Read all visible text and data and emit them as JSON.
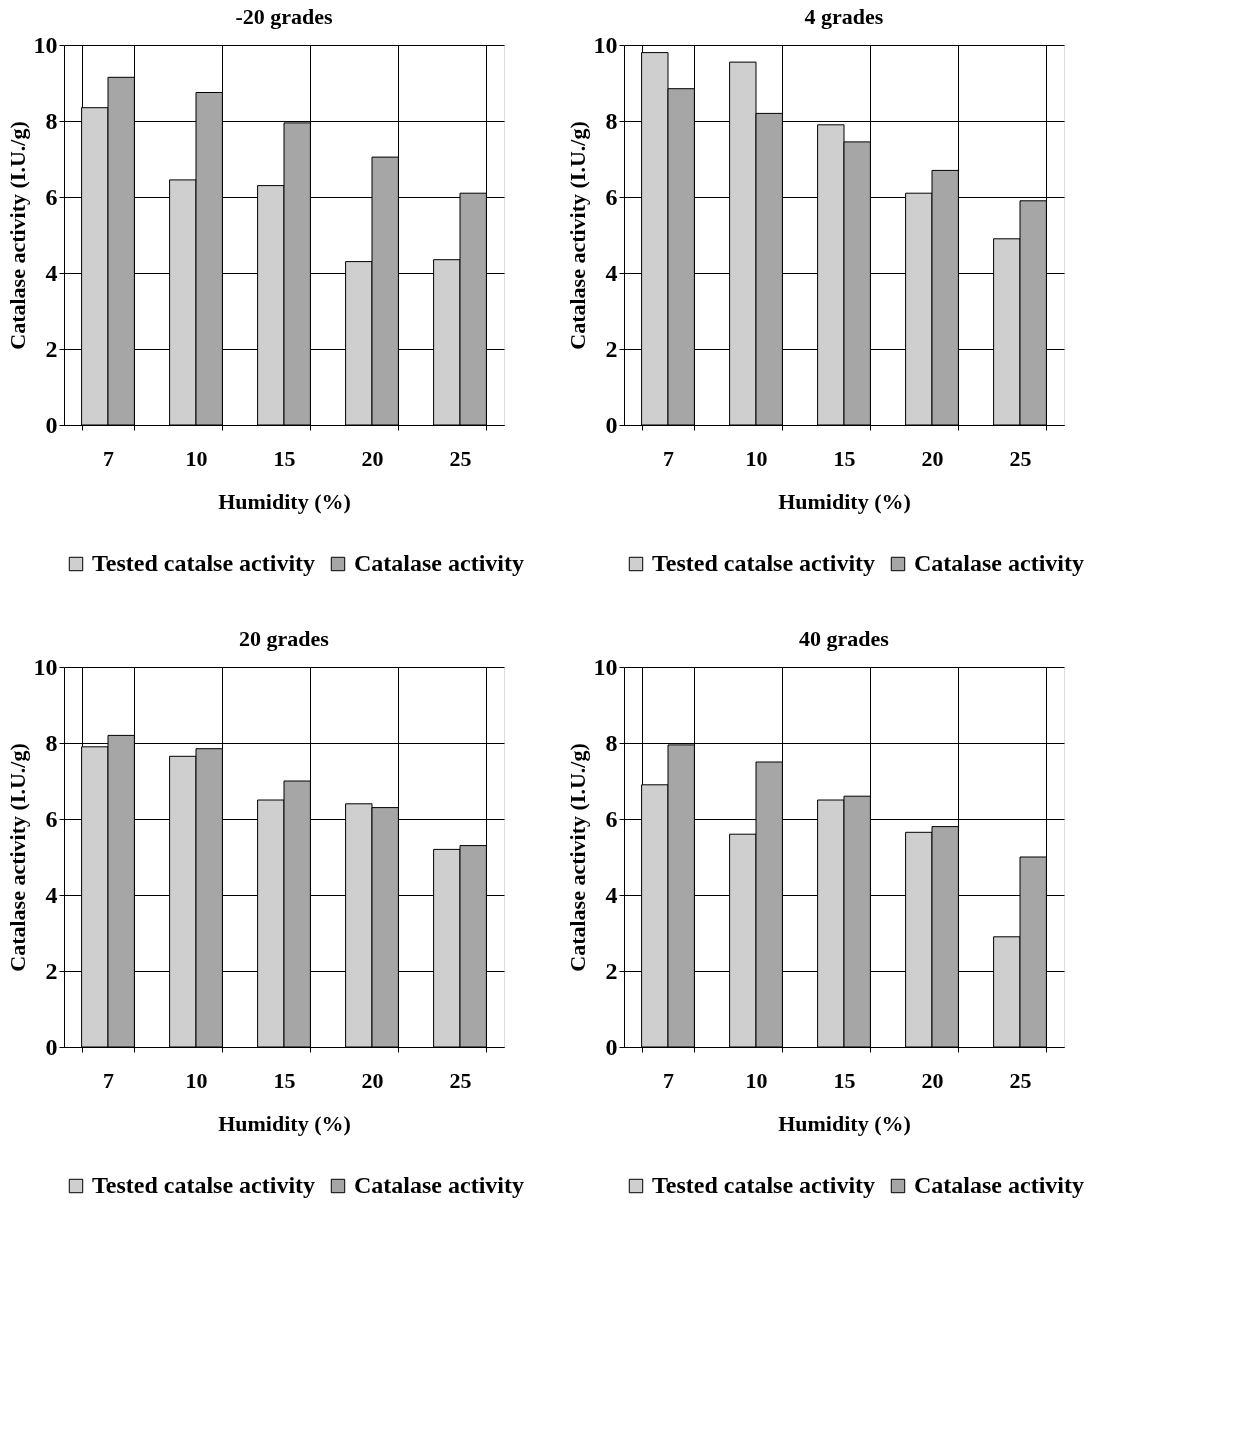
{
  "chart_data": [
    {
      "type": "bar",
      "title": "-20 grades",
      "xlabel": "Humidity (%)",
      "ylabel": "Catalase activity (I.U./g)",
      "categories": [
        "7",
        "10",
        "15",
        "20",
        "25"
      ],
      "ylim": [
        0,
        10
      ],
      "yticks": [
        0,
        2,
        4,
        6,
        8,
        10
      ],
      "grid": true,
      "legend": "bottom",
      "series": [
        {
          "name": "Tested catalse activity",
          "color": "#cfcfcf",
          "values": [
            8.35,
            6.45,
            6.3,
            4.3,
            4.35
          ]
        },
        {
          "name": "Catalase activity",
          "color": "#a6a6a6",
          "values": [
            9.15,
            8.75,
            7.95,
            7.05,
            6.1
          ]
        }
      ]
    },
    {
      "type": "bar",
      "title": "4 grades",
      "xlabel": "Humidity (%)",
      "ylabel": "Catalase activity (I.U./g)",
      "categories": [
        "7",
        "10",
        "15",
        "20",
        "25"
      ],
      "ylim": [
        0,
        10
      ],
      "yticks": [
        0,
        2,
        4,
        6,
        8,
        10
      ],
      "grid": true,
      "legend": "bottom",
      "series": [
        {
          "name": "Tested catalse activity",
          "color": "#cfcfcf",
          "values": [
            9.8,
            9.55,
            7.9,
            6.1,
            4.9
          ]
        },
        {
          "name": "Catalase activity",
          "color": "#a6a6a6",
          "values": [
            8.85,
            8.2,
            7.45,
            6.7,
            5.9
          ]
        }
      ]
    },
    {
      "type": "bar",
      "title": "20 grades",
      "xlabel": "Humidity (%)",
      "ylabel": "Catalase activity (I.U./g)",
      "categories": [
        "7",
        "10",
        "15",
        "20",
        "25"
      ],
      "ylim": [
        0,
        10
      ],
      "yticks": [
        0,
        2,
        4,
        6,
        8,
        10
      ],
      "grid": true,
      "legend": "bottom",
      "series": [
        {
          "name": "Tested catalse activity",
          "color": "#cfcfcf",
          "values": [
            7.9,
            7.65,
            6.5,
            6.4,
            5.2
          ]
        },
        {
          "name": "Catalase activity",
          "color": "#a6a6a6",
          "values": [
            8.2,
            7.85,
            7.0,
            6.3,
            5.3
          ]
        }
      ]
    },
    {
      "type": "bar",
      "title": "40 grades",
      "xlabel": "Humidity (%)",
      "ylabel": "Catalase activity (I.U./g)",
      "categories": [
        "7",
        "10",
        "15",
        "20",
        "25"
      ],
      "ylim": [
        0,
        10
      ],
      "yticks": [
        0,
        2,
        4,
        6,
        8,
        10
      ],
      "grid": true,
      "legend": "bottom",
      "series": [
        {
          "name": "Tested catalse activity",
          "color": "#cfcfcf",
          "values": [
            6.9,
            5.6,
            6.5,
            5.65,
            2.9
          ]
        },
        {
          "name": "Catalase activity",
          "color": "#a6a6a6",
          "values": [
            7.95,
            7.5,
            6.6,
            5.8,
            5.0
          ]
        }
      ]
    }
  ]
}
